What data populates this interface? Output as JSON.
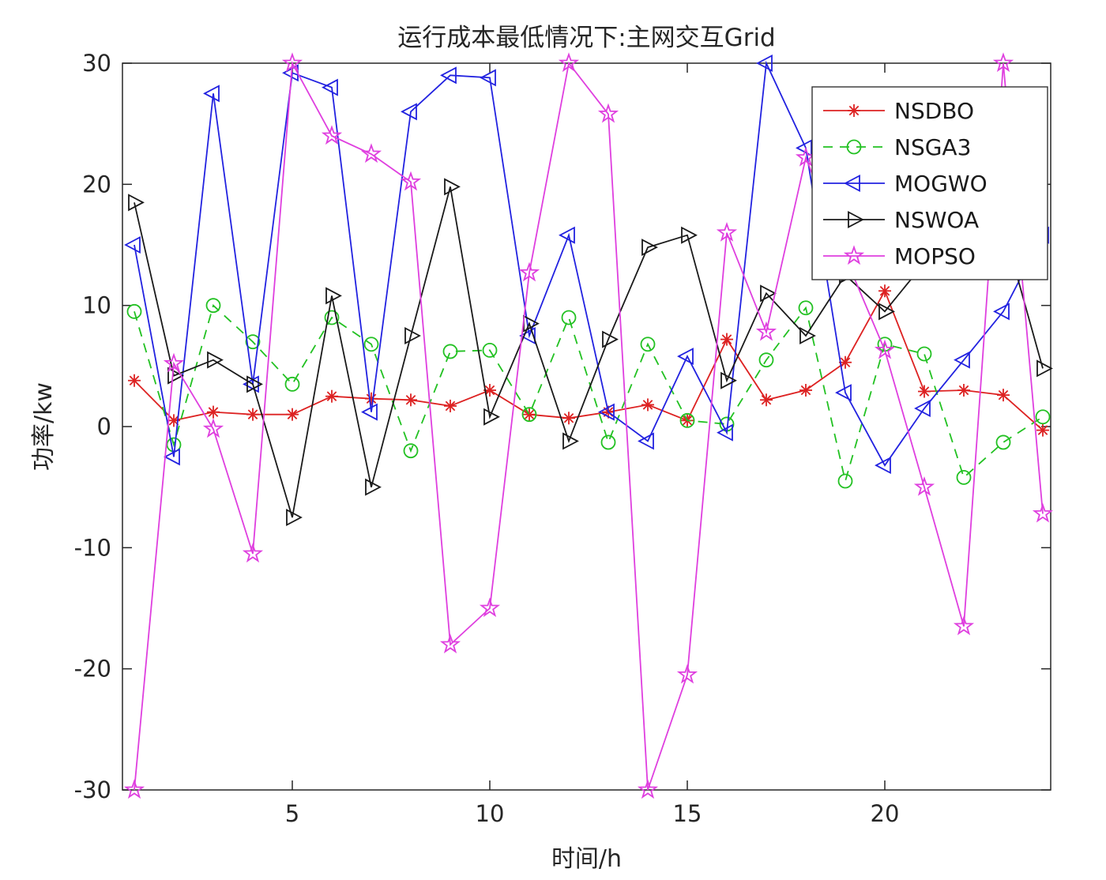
{
  "chart_data": {
    "type": "line",
    "title": "运行成本最低情况下:主网交互Grid",
    "xlabel": "时间/h",
    "ylabel": "功率/kw",
    "xlim": [
      0.7,
      24.2
    ],
    "ylim": [
      -30,
      30
    ],
    "xticks": [
      5,
      10,
      15,
      20
    ],
    "yticks": [
      -30,
      -20,
      -10,
      0,
      10,
      20,
      30
    ],
    "grid": false,
    "legend_position": "top-right",
    "axis_color": "#262626",
    "x": [
      1,
      2,
      3,
      4,
      5,
      6,
      7,
      8,
      9,
      10,
      11,
      12,
      13,
      14,
      15,
      16,
      17,
      18,
      19,
      20,
      21,
      22,
      23,
      24
    ],
    "series": [
      {
        "name": "NSDBO",
        "color": "#dd2222",
        "marker": "asterisk",
        "line": "solid",
        "values": [
          3.8,
          0.5,
          1.2,
          1.0,
          1.0,
          2.5,
          2.3,
          2.2,
          1.7,
          3.0,
          1.0,
          0.7,
          1.2,
          1.8,
          0.5,
          7.2,
          2.2,
          3.0,
          5.3,
          11.2,
          2.9,
          3.0,
          2.6,
          -0.3
        ]
      },
      {
        "name": "NSGA3",
        "color": "#22c122",
        "marker": "circle",
        "line": "dashed",
        "values": [
          9.5,
          -1.5,
          10.0,
          7.0,
          3.5,
          9.0,
          6.8,
          -2.0,
          6.2,
          6.3,
          1.0,
          9.0,
          -1.3,
          6.8,
          0.5,
          0.2,
          5.5,
          9.8,
          -4.5,
          6.8,
          6.0,
          -4.2,
          -1.3,
          0.8
        ]
      },
      {
        "name": "MOGWO",
        "color": "#2222e0",
        "marker": "triangle-left",
        "line": "solid",
        "values": [
          15.0,
          -2.5,
          27.5,
          3.5,
          29.2,
          28.0,
          1.2,
          26.0,
          29.0,
          28.8,
          7.5,
          15.8,
          1.2,
          -1.2,
          5.8,
          -0.5,
          30.0,
          23.0,
          2.8,
          -3.2,
          1.5,
          5.5,
          9.5,
          15.8
        ]
      },
      {
        "name": "NSWOA",
        "color": "#1a1a1a",
        "marker": "triangle-right",
        "line": "solid",
        "values": [
          18.5,
          4.2,
          5.5,
          3.5,
          -7.5,
          10.8,
          -5.0,
          7.5,
          19.8,
          0.8,
          8.5,
          -1.2,
          7.2,
          14.8,
          15.8,
          3.8,
          11.0,
          7.5,
          12.5,
          9.5,
          13.5,
          15.5,
          16.5,
          4.8
        ]
      },
      {
        "name": "MOPSO",
        "color": "#df3fdf",
        "marker": "star",
        "line": "solid",
        "values": [
          -30.0,
          5.2,
          -0.2,
          -10.5,
          30.0,
          24.0,
          22.5,
          20.2,
          -18.0,
          -15.0,
          12.7,
          30.0,
          25.8,
          -30.0,
          -20.5,
          16.0,
          7.8,
          22.2,
          14.0,
          6.3,
          -5.0,
          -16.5,
          30.0,
          -7.2
        ]
      }
    ]
  }
}
